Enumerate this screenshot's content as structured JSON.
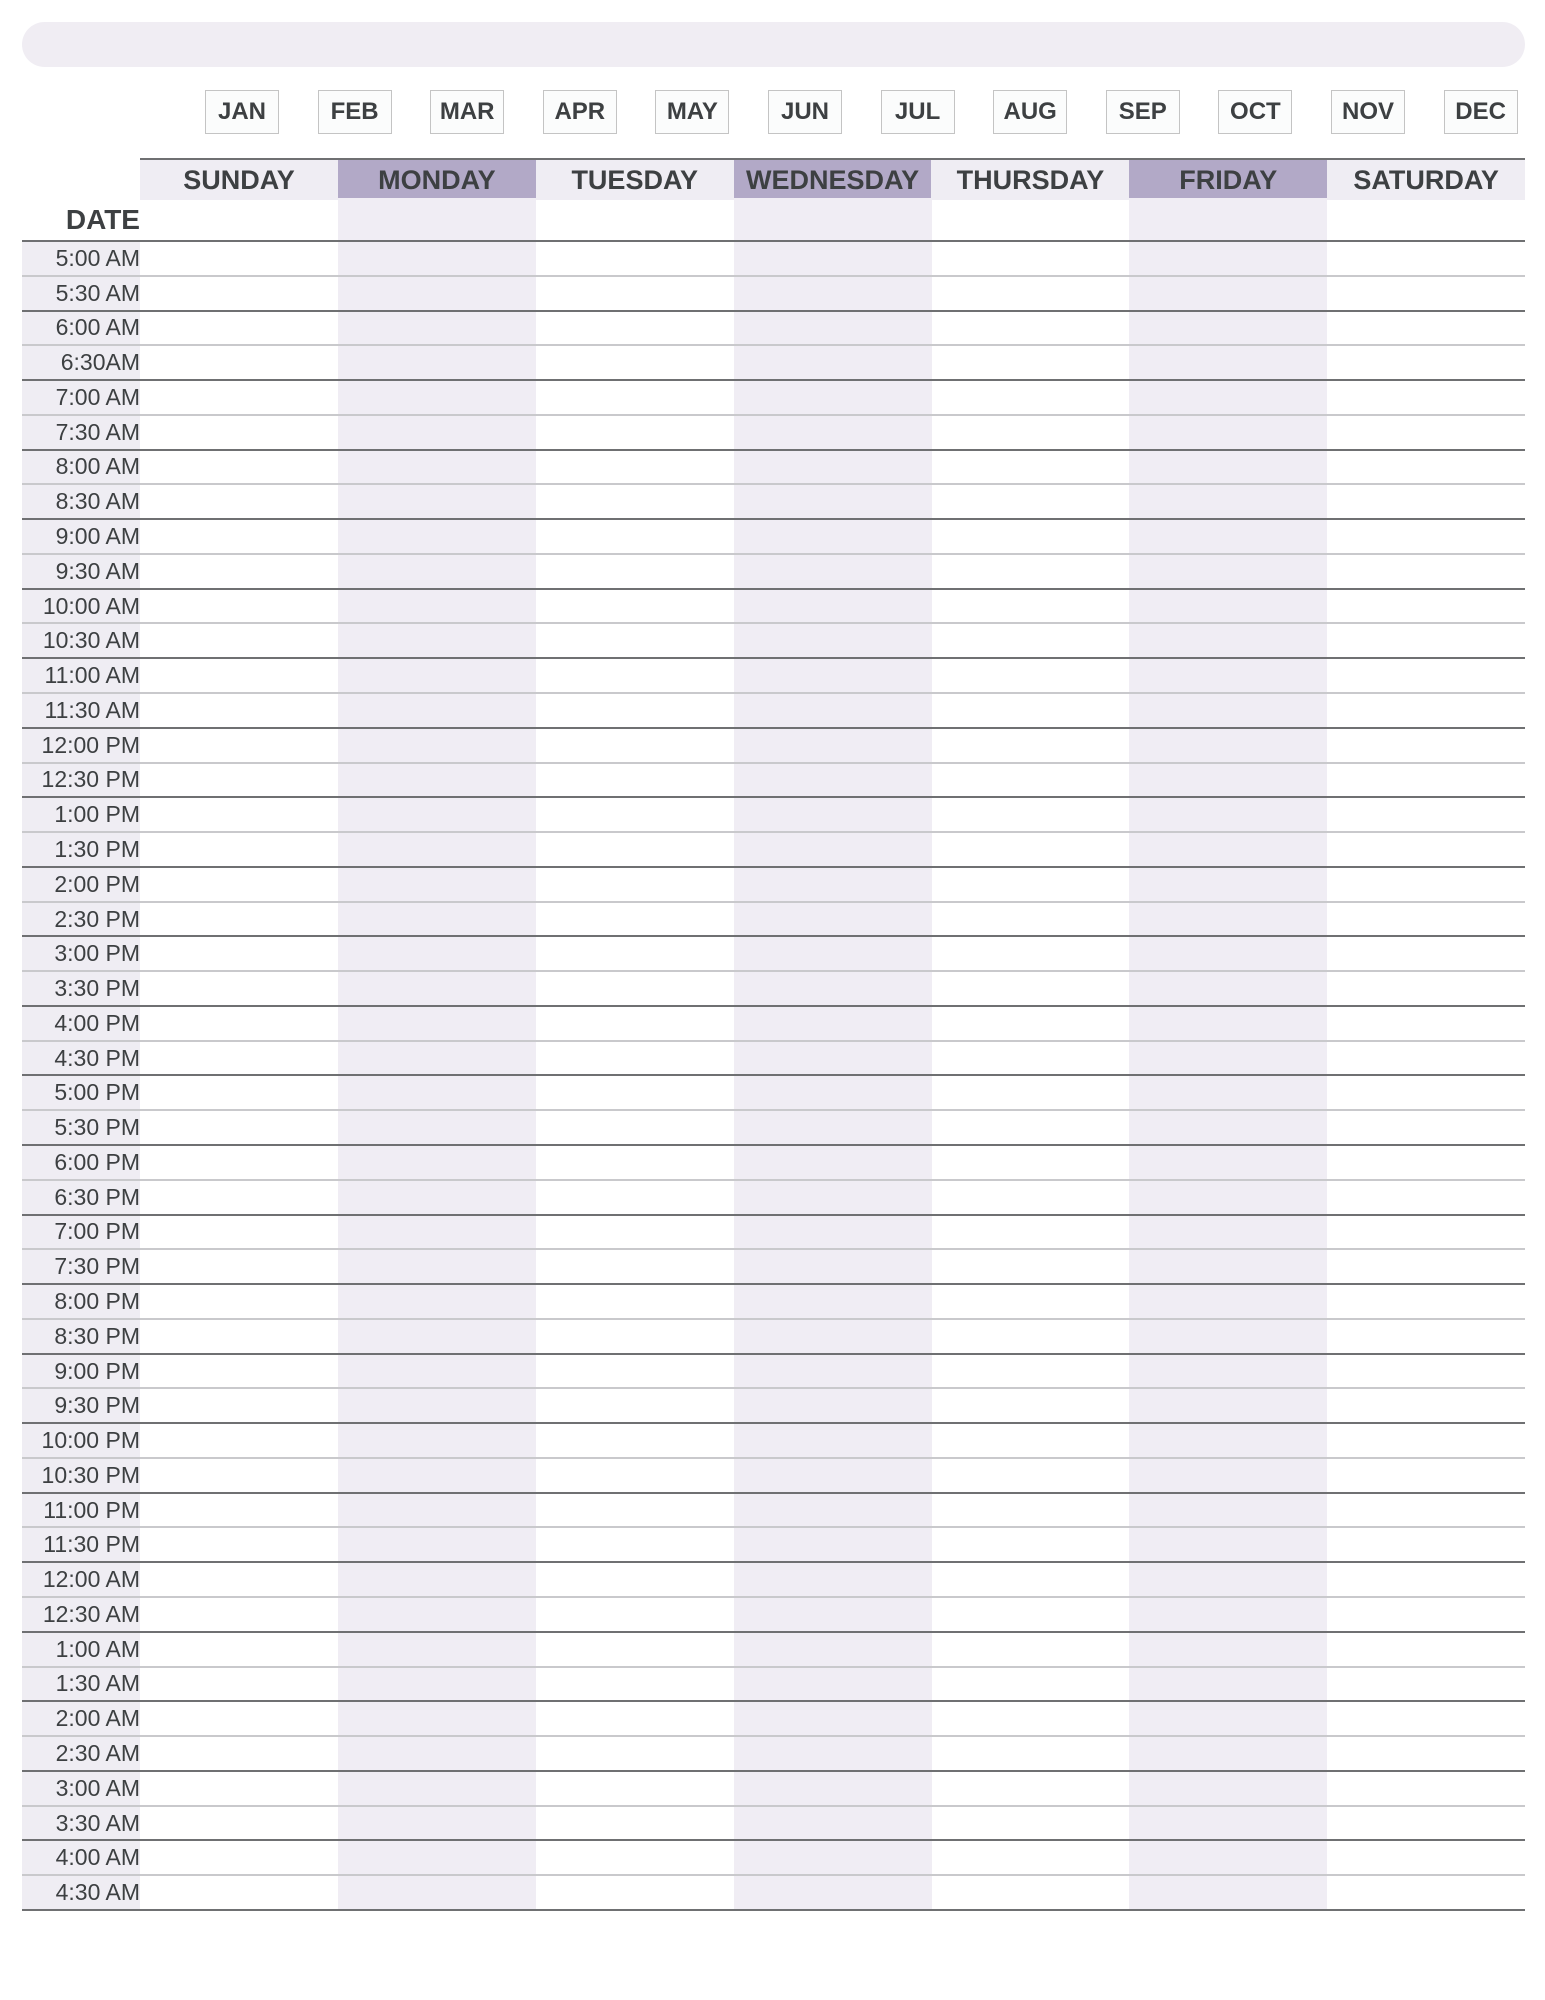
{
  "colors": {
    "accent": "#b2a9c7",
    "light": "#efedf3",
    "shade": "#f0edf4",
    "text": "#3d4042"
  },
  "months": [
    "JAN",
    "FEB",
    "MAR",
    "APR",
    "MAY",
    "JUN",
    "JUL",
    "AUG",
    "SEP",
    "OCT",
    "NOV",
    "DEC"
  ],
  "days": [
    "SUNDAY",
    "MONDAY",
    "TUESDAY",
    "WEDNESDAY",
    "THURSDAY",
    "FRIDAY",
    "SATURDAY"
  ],
  "date_label": "DATE",
  "times": [
    "5:00 AM",
    "5:30 AM",
    "6:00 AM",
    "6:30AM",
    "7:00 AM",
    "7:30 AM",
    "8:00 AM",
    "8:30 AM",
    "9:00 AM",
    "9:30 AM",
    "10:00 AM",
    "10:30 AM",
    "11:00 AM",
    "11:30 AM",
    "12:00 PM",
    "12:30 PM",
    "1:00 PM",
    "1:30 PM",
    "2:00 PM",
    "2:30 PM",
    "3:00 PM",
    "3:30 PM",
    "4:00 PM",
    "4:30 PM",
    "5:00 PM",
    "5:30 PM",
    "6:00 PM",
    "6:30 PM",
    "7:00 PM",
    "7:30 PM",
    "8:00 PM",
    "8:30 PM",
    "9:00 PM",
    "9:30 PM",
    "10:00 PM",
    "10:30 PM",
    "11:00 PM",
    "11:30 PM",
    "12:00 AM",
    "12:30 AM",
    "1:00 AM",
    "1:30 AM",
    "2:00 AM",
    "2:30 AM",
    "3:00 AM",
    "3:30 AM",
    "4:00 AM",
    "4:30 AM"
  ]
}
